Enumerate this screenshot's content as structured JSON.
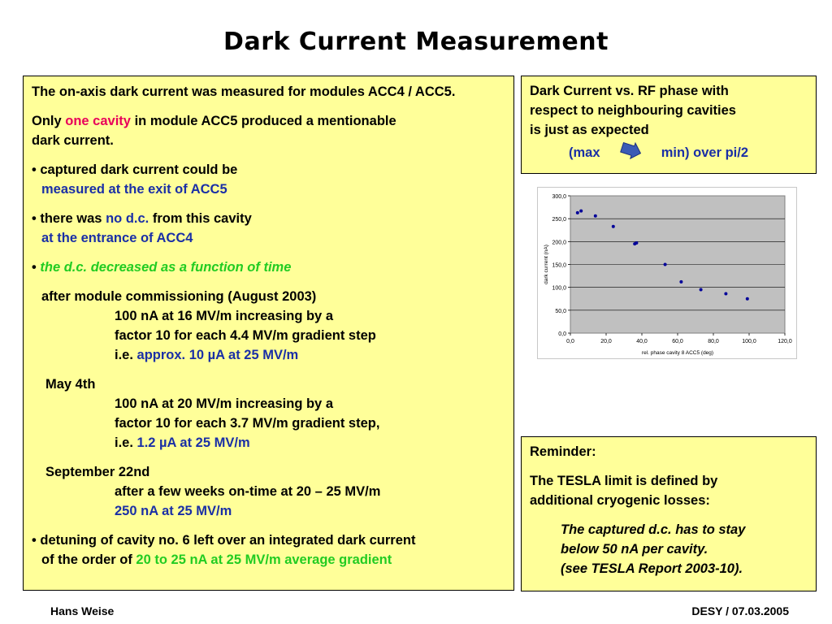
{
  "title": "Dark Current Measurement",
  "left": {
    "p1": "The on-axis dark current was measured for modules ACC4 / ACC5.",
    "p2a": "Only ",
    "p2b": "one cavity",
    "p2c": " in module ACC5 produced a mentionable",
    "p2d": "dark current.",
    "b1a": "• captured dark current could be",
    "b1b": "measured at the exit of ACC5",
    "b2a": "• there was ",
    "b2b": "no d.c.",
    "b2c": " from this cavity",
    "b2d": "at the entrance of ACC4",
    "b3a": "• ",
    "b3b": "the d.c. decreased as a function of time",
    "s1": "after module commissioning (August 2003)",
    "s1l1": "100 nA at 16 MV/m increasing by a",
    "s1l2": "factor 10 for each 4.4 MV/m gradient step",
    "s1l3a": "i.e. ",
    "s1l3b": "approx. 10 µA at 25 MV/m",
    "s2": "May 4th",
    "s2l1": "100 nA at 20 MV/m increasing by a",
    "s2l2": "factor 10 for each 3.7 MV/m gradient step,",
    "s2l3a": "i.e. ",
    "s2l3b": "1.2 µA at 25 MV/m",
    "s3": "September 22nd",
    "s3l1": "after a few weeks on-time at 20 – 25 MV/m",
    "s3l2": "250 nA at 25 MV/m",
    "b4a": "• detuning of cavity no. 6 left over an integrated dark current",
    "b4b": "of the order of ",
    "b4c": "20 to 25 nA at 25 MV/m average gradient"
  },
  "top_right": {
    "l1": "Dark Current vs. RF phase with",
    "l2": "respect to neighbouring cavities",
    "l3": "is just as expected",
    "max": "(max",
    "min": "min) over pi/2"
  },
  "reminder": {
    "heading": "Reminder:",
    "l1": "The TESLA limit is defined by",
    "l2": "additional cryogenic losses:",
    "q1": "The captured d.c. has to stay",
    "q2": "below 50 nA per cavity.",
    "q3": "(see TESLA Report 2003-10)."
  },
  "footer": {
    "author": "Hans Weise",
    "org_date": "DESY / 07.03.2005"
  },
  "colors": {
    "box_bg": "#ffff99",
    "highlight_red": "#e8005a",
    "highlight_blue": "#1a2fa6",
    "highlight_green": "#22cc22",
    "plot_bg": "#c0c0c0",
    "marker": "#000099"
  },
  "icons": {
    "arrow": "right-arrow-icon"
  },
  "chart_data": {
    "type": "scatter",
    "title": "",
    "xlabel": "rel. phase cavity 8 ACC5 (deg)",
    "ylabel": "dark current (nA)",
    "xlim": [
      0,
      120
    ],
    "ylim": [
      0,
      300
    ],
    "x_ticks": [
      "0,0",
      "20,0",
      "40,0",
      "60,0",
      "80,0",
      "100,0",
      "120,0"
    ],
    "y_ticks": [
      "0,0",
      "50,0",
      "100,0",
      "150,0",
      "200,0",
      "250,0",
      "300,0"
    ],
    "grid": true,
    "legend": "none",
    "series": [
      {
        "x": [
          4,
          6,
          14,
          24,
          36,
          37,
          53,
          62,
          73,
          87,
          99
        ],
        "y": [
          263,
          267,
          256,
          233,
          195,
          197,
          150,
          112,
          95,
          86,
          75
        ]
      }
    ]
  }
}
